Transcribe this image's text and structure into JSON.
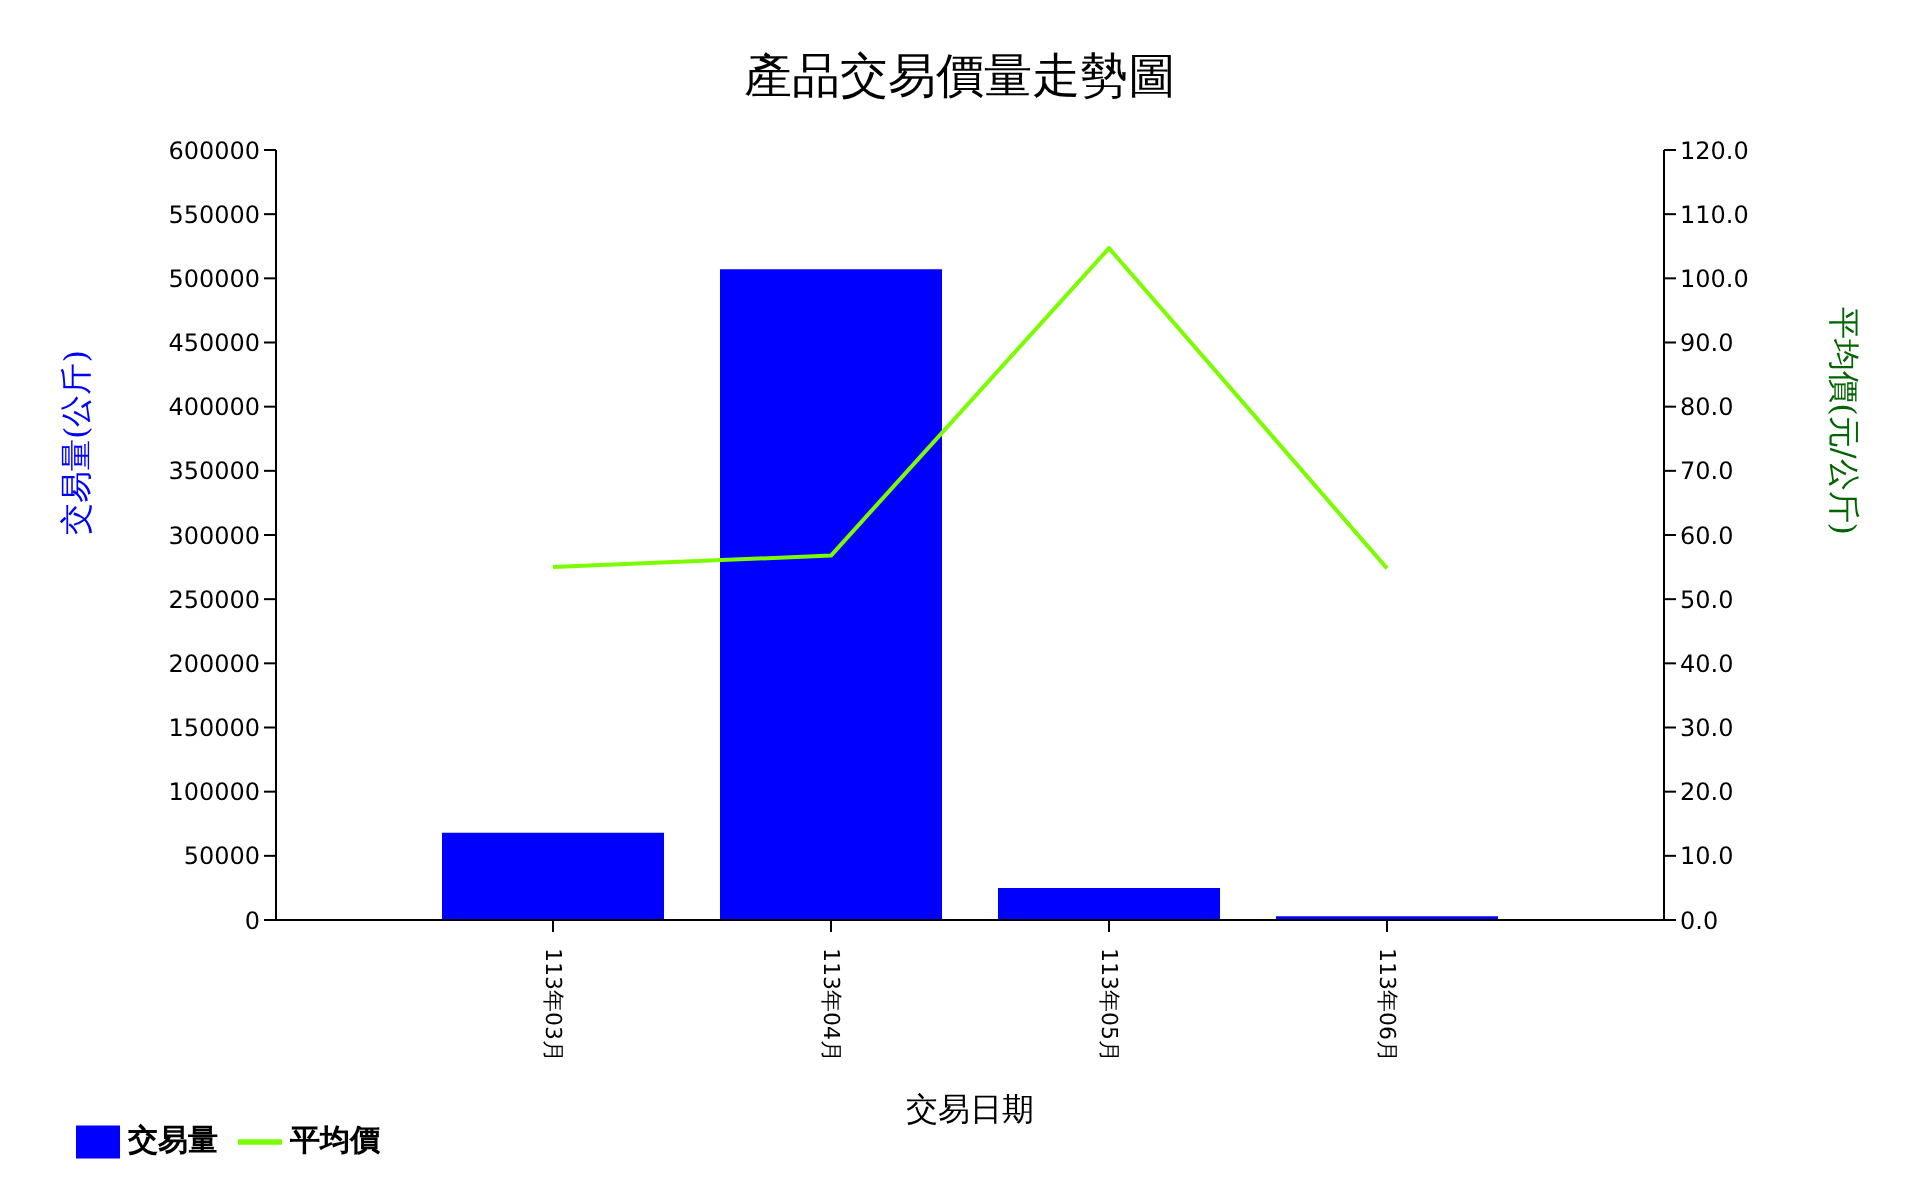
{
  "chart_data": {
    "type": "bar",
    "title": "產品交易價量走勢圖",
    "xlabel": "交易日期",
    "ylabel": "交易量(公斤)",
    "y2label": "平均價(元/公斤)",
    "categories": [
      "113年03月",
      "113年04月",
      "113年05月",
      "113年06月"
    ],
    "series": [
      {
        "name": "交易量",
        "color": "#0000ff",
        "values": [
          68000,
          507000,
          25000,
          3000
        ]
      },
      {
        "name": "平均價",
        "type": "line",
        "axis": "y2",
        "color": "#7cfc00",
        "values": [
          55.0,
          56.8,
          104.7,
          54.8
        ]
      }
    ],
    "ylim": [
      0,
      600000
    ],
    "yticks": [
      0,
      50000,
      100000,
      150000,
      200000,
      250000,
      300000,
      350000,
      400000,
      450000,
      500000,
      550000,
      600000
    ],
    "y2lim": [
      0,
      120
    ],
    "y2ticks": [
      {
        "value": 0,
        "label": "0.0"
      },
      {
        "value": 10,
        "label": "10.0"
      },
      {
        "value": 20,
        "label": "20.0"
      },
      {
        "value": 30,
        "label": "30.0"
      },
      {
        "value": 40,
        "label": "40.0"
      },
      {
        "value": 50,
        "label": "50.0"
      },
      {
        "value": 60,
        "label": "60.0"
      },
      {
        "value": 70,
        "label": "70.0"
      },
      {
        "value": 80,
        "label": "80.0"
      },
      {
        "value": 90,
        "label": "90.0"
      },
      {
        "value": 100,
        "label": "100.0"
      },
      {
        "value": 110,
        "label": "110.0"
      },
      {
        "value": 120,
        "label": "120.0"
      }
    ],
    "legend": "bottom left",
    "marker": "none",
    "line_style": "solid",
    "grid": false
  }
}
